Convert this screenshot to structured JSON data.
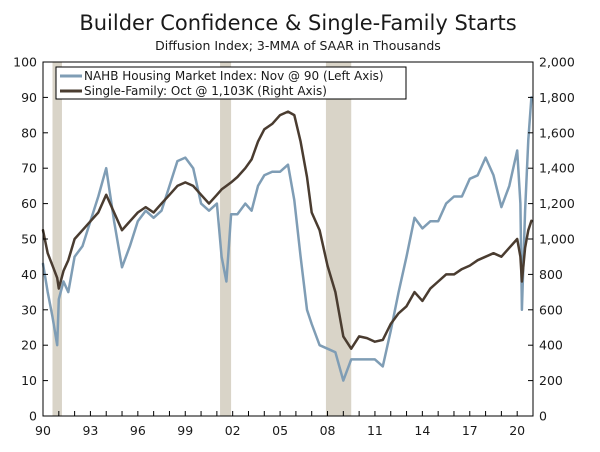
{
  "chart_data": {
    "type": "line",
    "title": "Builder Confidence & Single-Family Starts",
    "subtitle": "Diffusion Index; 3-MMA of SAAR in Thousands",
    "x_range": [
      1990,
      2021.0
    ],
    "x_ticks": [
      {
        "value": 1990,
        "label": "90"
      },
      {
        "value": 1993,
        "label": "93"
      },
      {
        "value": 1996,
        "label": "96"
      },
      {
        "value": 1999,
        "label": "99"
      },
      {
        "value": 2002,
        "label": "02"
      },
      {
        "value": 2005,
        "label": "05"
      },
      {
        "value": 2008,
        "label": "08"
      },
      {
        "value": 2011,
        "label": "11"
      },
      {
        "value": 2014,
        "label": "14"
      },
      {
        "value": 2017,
        "label": "17"
      },
      {
        "value": 2020,
        "label": "20"
      }
    ],
    "y_left": {
      "min": 0,
      "max": 100,
      "ticks": [
        "0",
        "10",
        "20",
        "30",
        "40",
        "50",
        "60",
        "70",
        "80",
        "90",
        "100"
      ]
    },
    "y_right": {
      "min": 0,
      "max": 2000,
      "ticks": [
        "0",
        "200",
        "400",
        "600",
        "800",
        "1,000",
        "1,200",
        "1,400",
        "1,600",
        "1,800",
        "2,000"
      ]
    },
    "recessions": [
      [
        1990.6,
        1991.2
      ],
      [
        2001.2,
        2001.9
      ],
      [
        2007.9,
        2009.5
      ]
    ],
    "legend": [
      "NAHB Housing Market Index: Nov @ 90 (Left Axis)",
      "Single-Family: Oct @ 1,103K (Right Axis)"
    ],
    "colors": {
      "nahb": "#7f9db5",
      "single_family": "#4a3c30",
      "recession": "#d9d4c8"
    },
    "series": [
      {
        "name": "NAHB Housing Market Index",
        "axis": "left",
        "x": [
          1990.0,
          1990.3,
          1990.6,
          1990.9,
          1991.0,
          1991.3,
          1991.6,
          1992.0,
          1992.5,
          1993.0,
          1993.5,
          1994.0,
          1994.5,
          1995.0,
          1995.5,
          1996.0,
          1996.5,
          1997.0,
          1997.5,
          1998.0,
          1998.5,
          1999.0,
          1999.5,
          2000.0,
          2000.5,
          2001.0,
          2001.3,
          2001.6,
          2001.9,
          2002.3,
          2002.8,
          2003.2,
          2003.6,
          2004.0,
          2004.5,
          2005.0,
          2005.5,
          2005.9,
          2006.3,
          2006.7,
          2007.0,
          2007.5,
          2008.0,
          2008.5,
          2009.0,
          2009.5,
          2010.0,
          2010.5,
          2011.0,
          2011.5,
          2012.0,
          2012.5,
          2013.0,
          2013.5,
          2014.0,
          2014.5,
          2015.0,
          2015.5,
          2016.0,
          2016.5,
          2017.0,
          2017.5,
          2018.0,
          2018.5,
          2019.0,
          2019.5,
          2020.0,
          2020.2,
          2020.3,
          2020.5,
          2020.7,
          2020.9
        ],
        "values": [
          43,
          35,
          28,
          20,
          33,
          38,
          35,
          45,
          48,
          55,
          62,
          70,
          55,
          42,
          48,
          55,
          58,
          56,
          58,
          65,
          72,
          73,
          70,
          60,
          58,
          60,
          45,
          38,
          57,
          57,
          60,
          58,
          65,
          68,
          69,
          69,
          71,
          61,
          45,
          30,
          26,
          20,
          19,
          18,
          10,
          16,
          16,
          16,
          16,
          14,
          24,
          35,
          45,
          56,
          53,
          55,
          55,
          60,
          62,
          62,
          67,
          68,
          73,
          68,
          59,
          65,
          75,
          60,
          30,
          58,
          78,
          90
        ]
      },
      {
        "name": "Single-Family Starts",
        "axis": "right",
        "x": [
          1990.0,
          1990.3,
          1990.6,
          1990.9,
          1991.0,
          1991.3,
          1991.6,
          1992.0,
          1992.5,
          1993.0,
          1993.5,
          1994.0,
          1994.5,
          1995.0,
          1995.5,
          1996.0,
          1996.5,
          1997.0,
          1997.5,
          1998.0,
          1998.5,
          1999.0,
          1999.5,
          2000.0,
          2000.5,
          2001.0,
          2001.3,
          2001.6,
          2001.9,
          2002.3,
          2002.8,
          2003.2,
          2003.6,
          2004.0,
          2004.5,
          2005.0,
          2005.5,
          2005.9,
          2006.3,
          2006.7,
          2007.0,
          2007.5,
          2008.0,
          2008.5,
          2009.0,
          2009.5,
          2010.0,
          2010.5,
          2011.0,
          2011.5,
          2012.0,
          2012.5,
          2013.0,
          2013.5,
          2014.0,
          2014.5,
          2015.0,
          2015.5,
          2016.0,
          2016.5,
          2017.0,
          2017.5,
          2018.0,
          2018.5,
          2019.0,
          2019.5,
          2020.0,
          2020.2,
          2020.3,
          2020.5,
          2020.7,
          2020.9
        ],
        "values": [
          1050,
          920,
          850,
          780,
          720,
          820,
          880,
          1000,
          1050,
          1100,
          1150,
          1250,
          1150,
          1050,
          1100,
          1150,
          1180,
          1150,
          1200,
          1250,
          1300,
          1320,
          1300,
          1250,
          1200,
          1250,
          1280,
          1300,
          1320,
          1350,
          1400,
          1450,
          1550,
          1620,
          1650,
          1700,
          1720,
          1700,
          1550,
          1350,
          1150,
          1050,
          850,
          700,
          450,
          380,
          450,
          440,
          420,
          430,
          520,
          580,
          620,
          700,
          650,
          720,
          760,
          800,
          800,
          830,
          850,
          880,
          900,
          920,
          900,
          950,
          1000,
          900,
          760,
          950,
          1050,
          1103
        ]
      }
    ]
  }
}
